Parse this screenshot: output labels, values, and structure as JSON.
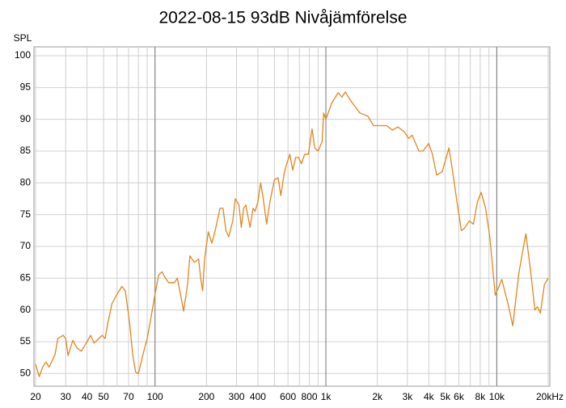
{
  "chart_data": {
    "type": "line",
    "title": "2022-08-15 93dB Nivåjämförelse",
    "y_label": "SPL",
    "x_scale": "log",
    "xlim": [
      20,
      20000
    ],
    "ylim": [
      48,
      101.4
    ],
    "yticks": [
      50,
      55,
      60,
      65,
      70,
      75,
      80,
      85,
      90,
      95,
      100
    ],
    "xticks": [
      20,
      30,
      40,
      50,
      70,
      100,
      200,
      300,
      400,
      600,
      800,
      {
        "value": 1000,
        "label": "1k"
      },
      {
        "value": 2000,
        "label": "2k"
      },
      {
        "value": 3000,
        "label": "3k"
      },
      {
        "value": 4000,
        "label": "4k"
      },
      {
        "value": 5000,
        "label": "5k"
      },
      {
        "value": 6000,
        "label": "6k"
      },
      {
        "value": 8000,
        "label": "8k"
      },
      {
        "value": 10000,
        "label": "10k"
      },
      {
        "value": 20000,
        "label": "20kHz"
      }
    ],
    "xgrid_minor": [
      60,
      80,
      90,
      500,
      700,
      900,
      7000,
      9000
    ],
    "xgrid_major": [
      100,
      1000,
      10000
    ],
    "grid": true,
    "x": [
      20,
      21,
      22,
      23,
      24,
      26,
      27,
      29,
      30,
      31,
      33,
      35,
      37,
      40,
      42,
      44,
      47,
      49,
      51,
      53,
      56,
      60,
      64,
      67,
      71,
      74,
      77,
      80,
      85,
      90,
      95,
      100,
      105,
      110,
      115,
      120,
      130,
      135,
      142,
      147,
      155,
      160,
      165,
      170,
      180,
      185,
      190,
      195,
      205,
      215,
      225,
      240,
      250,
      260,
      270,
      285,
      295,
      310,
      320,
      330,
      340,
      360,
      375,
      385,
      400,
      415,
      430,
      450,
      470,
      500,
      525,
      545,
      570,
      590,
      615,
      640,
      665,
      690,
      720,
      750,
      790,
      810,
      830,
      860,
      900,
      950,
      970,
      1000,
      1080,
      1180,
      1240,
      1300,
      1390,
      1580,
      1760,
      1900,
      2080,
      2270,
      2450,
      2640,
      2880,
      3050,
      3200,
      3500,
      3700,
      4000,
      4200,
      4450,
      4800,
      5250,
      5500,
      5850,
      6200,
      6450,
      6900,
      7300,
      7700,
      8100,
      8600,
      9100,
      9800,
      10700,
      11700,
      12400,
      13500,
      14800,
      15800,
      16700,
      17300,
      18000,
      19000,
      20000
    ],
    "series": [
      {
        "name": "SPL",
        "color": "#e0861c",
        "values": [
          51.5,
          49.5,
          51,
          51.8,
          51,
          53,
          55.5,
          56,
          55.5,
          52.8,
          55.2,
          54,
          53.5,
          55,
          56,
          54.8,
          55.5,
          56,
          55.5,
          58,
          61,
          62.5,
          63.7,
          63,
          58,
          53,
          50.2,
          50,
          53,
          55.5,
          59,
          62.5,
          65.5,
          66,
          65,
          64.3,
          64.3,
          65,
          62,
          59.8,
          64,
          68.5,
          68,
          67.5,
          68,
          65,
          63,
          68,
          72.3,
          70.5,
          72.5,
          76,
          76,
          72.5,
          71.5,
          74,
          77.5,
          76.5,
          73,
          76,
          76.5,
          73,
          76,
          75.5,
          77,
          80,
          77.5,
          73.5,
          77,
          80.5,
          80.8,
          78,
          81.5,
          83,
          84.5,
          82,
          84,
          84,
          83,
          84.5,
          84.5,
          86.5,
          88.5,
          85.5,
          85,
          86.5,
          91,
          90,
          92.5,
          94.2,
          93.5,
          94.3,
          93,
          91,
          90.5,
          89,
          89,
          89,
          88.3,
          88.8,
          88,
          87,
          87.5,
          85,
          85,
          86.2,
          84.5,
          81.2,
          81.8,
          85.5,
          82,
          77,
          72.5,
          72.8,
          74,
          73.5,
          77,
          78.5,
          76,
          71.5,
          62.3,
          64.8,
          60.7,
          57.5,
          66,
          72,
          66,
          60,
          60.5,
          59.5,
          64,
          65
        ]
      }
    ]
  }
}
